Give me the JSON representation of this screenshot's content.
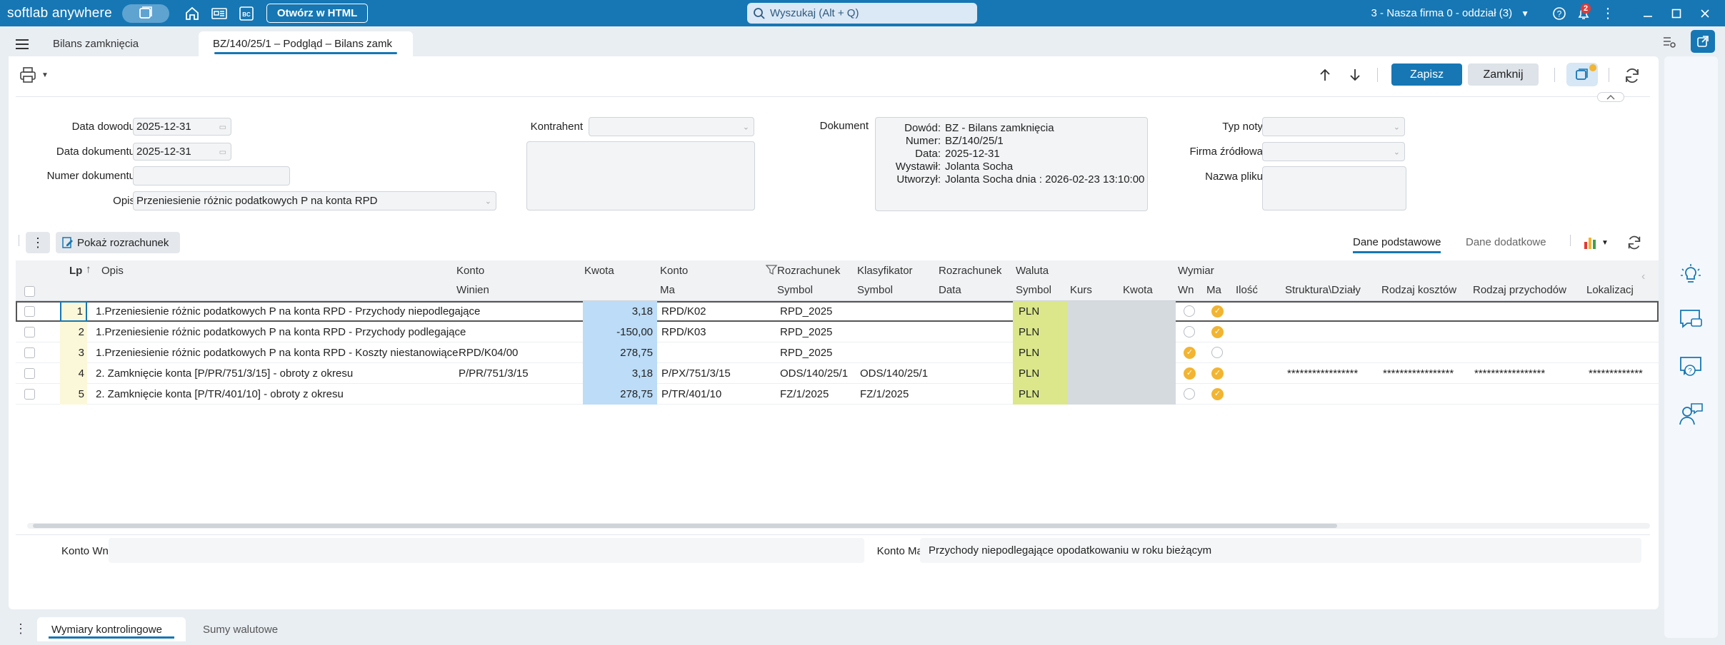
{
  "titlebar": {
    "brand": "softlab anywhere",
    "open_html": "Otwórz w HTML",
    "search_placeholder": "Wyszukaj (Alt + Q)",
    "company": "3 - Nasza firma 0 - oddział (3)",
    "notif_count": "2"
  },
  "tabs": [
    {
      "label": "Bilans zamknięcia"
    },
    {
      "label": "BZ/140/25/1 – Podgląd – Bilans zamk"
    }
  ],
  "toolbar": {
    "save": "Zapisz",
    "close": "Zamknij"
  },
  "form": {
    "data_dowodu_label": "Data dowodu",
    "data_dowodu": "2025-12-31",
    "data_dokumentu_label": "Data dokumentu",
    "data_dokumentu": "2025-12-31",
    "numer_dokumentu_label": "Numer dokumentu",
    "numer_dokumentu": "",
    "opis_label": "Opis",
    "opis": "Przeniesienie różnic podatkowych P na konta RPD",
    "kontrahent_label": "Kontrahent",
    "dokument_label": "Dokument",
    "typ_noty_label": "Typ noty",
    "firma_zrodlowa_label": "Firma źródłowa",
    "nazwa_pliku_label": "Nazwa pliku"
  },
  "document": [
    {
      "k": "Dowód:",
      "v": "BZ - Bilans zamknięcia"
    },
    {
      "k": "Numer:",
      "v": "BZ/140/25/1"
    },
    {
      "k": "Data:",
      "v": "2025-12-31"
    },
    {
      "k": "Wystawił:",
      "v": "Jolanta Socha"
    },
    {
      "k": "Utworzył:",
      "v": "Jolanta Socha dnia : 2026-02-23 13:10:00"
    }
  ],
  "gridbar": {
    "show_settlement": "Pokaż rozrachunek",
    "tab_basic": "Dane podstawowe",
    "tab_extra": "Dane dodatkowe"
  },
  "grid_headers": {
    "lp": "Lp",
    "opis": "Opis",
    "konto": "Konto",
    "winien": "Winien",
    "kwota": "Kwota",
    "konto_ma": "Konto",
    "ma": "Ma",
    "rozrachunek": "Rozrachunek",
    "symbol": "Symbol",
    "klasyfikator": "Klasyfikator",
    "klas_symbol": "Symbol",
    "rozr2": "Rozrachunek",
    "data": "Data",
    "waluta": "Waluta",
    "wal_symbol": "Symbol",
    "kurs": "Kurs",
    "wal_kwota": "Kwota",
    "wymiar": "Wymiar",
    "wn": "Wn",
    "wma": "Ma",
    "ilosc": "Ilość",
    "struktura": "Struktura\\Działy",
    "rodzaj_kosztow": "Rodzaj kosztów",
    "rodzaj_przychodow": "Rodzaj przychodów",
    "lokalizacja": "Lokalizacj"
  },
  "rows": [
    {
      "lp": "1",
      "opis": "1.Przeniesienie różnic podatkowych P na konta RPD - Przychody niepodlegające",
      "winien": "",
      "kwota": "3,18",
      "ma": "RPD/K02",
      "rozr": "RPD_2025",
      "klas": "",
      "waluta": "PLN",
      "wn": false,
      "wma": true,
      "struktura": "",
      "koszty": "",
      "przychody": "",
      "lok": ""
    },
    {
      "lp": "2",
      "opis": "1.Przeniesienie różnic podatkowych P na konta RPD - Przychody podlegające",
      "winien": "",
      "kwota": "-150,00",
      "ma": "RPD/K03",
      "rozr": "RPD_2025",
      "klas": "",
      "waluta": "PLN",
      "wn": false,
      "wma": true,
      "struktura": "",
      "koszty": "",
      "przychody": "",
      "lok": ""
    },
    {
      "lp": "3",
      "opis": "1.Przeniesienie różnic podatkowych P na konta RPD - Koszty niestanowiące",
      "winien": "RPD/K04/00",
      "kwota": "278,75",
      "ma": "",
      "rozr": "RPD_2025",
      "klas": "",
      "waluta": "PLN",
      "wn": true,
      "wma": false,
      "struktura": "",
      "koszty": "",
      "przychody": "",
      "lok": ""
    },
    {
      "lp": "4",
      "opis": "2. Zamknięcie konta [P/PR/751/3/15] - obroty z okresu",
      "winien": "P/PR/751/3/15",
      "kwota": "3,18",
      "ma": "P/PX/751/3/15",
      "rozr": "ODS/140/25/1",
      "klas": "ODS/140/25/1",
      "waluta": "PLN",
      "wn": true,
      "wma": true,
      "struktura": "*****************",
      "koszty": "*****************",
      "przychody": "*****************",
      "lok": "*************"
    },
    {
      "lp": "5",
      "opis": "2. Zamknięcie konta [P/TR/401/10] - obroty z okresu",
      "winien": "",
      "kwota": "278,75",
      "ma": "P/TR/401/10",
      "rozr": "FZ/1/2025",
      "klas": "FZ/1/2025",
      "waluta": "PLN",
      "wn": false,
      "wma": true,
      "struktura": "",
      "koszty": "",
      "przychody": "",
      "lok": ""
    }
  ],
  "footer": {
    "konto_wn_label": "Konto Wn:",
    "konto_wn": "",
    "konto_ma_label": "Konto Ma:",
    "konto_ma": "Przychody niepodlegające opodatkowaniu w roku bieżącym"
  },
  "bottom_tabs": [
    {
      "label": "Wymiary kontrolingowe"
    },
    {
      "label": "Sumy walutowe"
    }
  ],
  "colors": {
    "accent": "#1677b4",
    "kwota_bg": "#bcdcf7",
    "waluta_bg": "#dbe78a",
    "gray_cell": "#d5dadf",
    "check_on": "#f2b431"
  }
}
